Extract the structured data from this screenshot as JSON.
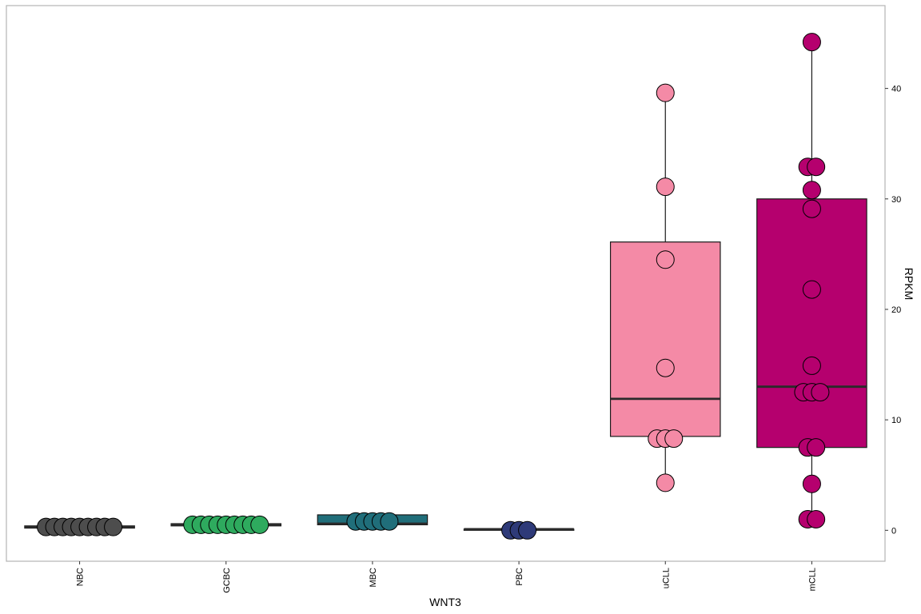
{
  "chart_data": {
    "type": "box",
    "xlabel": "WNT3",
    "ylabel": "RPKM",
    "ylim": [
      -2.8,
      47.5
    ],
    "yticks": [
      0,
      10,
      20,
      30,
      40
    ],
    "y_axis_position": "right",
    "grid": false,
    "legend": "none",
    "categories": [
      "NBC",
      "GCBC",
      "MBC",
      "PBC",
      "uCLL",
      "mCLL"
    ],
    "groups": [
      {
        "name": "NBC",
        "color": "#4d4d4d",
        "box": {
          "q1": 0.2,
          "median": 0.3,
          "q3": 0.4,
          "whisker_low": 0.2,
          "whisker_high": 0.4
        },
        "points": [
          0.3,
          0.3,
          0.3,
          0.3,
          0.3,
          0.3,
          0.3,
          0.3,
          0.3
        ]
      },
      {
        "name": "GCBC",
        "color": "#2eaa5e",
        "box": {
          "q1": 0.4,
          "median": 0.5,
          "q3": 0.6,
          "whisker_low": 0.4,
          "whisker_high": 0.6
        },
        "points": [
          0.5,
          0.5,
          0.5,
          0.5,
          0.5,
          0.5,
          0.5,
          0.5,
          0.5
        ]
      },
      {
        "name": "MBC",
        "color": "#206e7a",
        "box": {
          "q1": 0.5,
          "median": 0.6,
          "q3": 1.4,
          "whisker_low": 0.5,
          "whisker_high": 1.4
        },
        "points": [
          0.8,
          0.8,
          0.8,
          0.8,
          0.8
        ]
      },
      {
        "name": "PBC",
        "color": "#2e3a78",
        "box": {
          "q1": 0.0,
          "median": 0.1,
          "q3": 0.1,
          "whisker_low": 0.0,
          "whisker_high": 0.1
        },
        "points": [
          0.0,
          0.0,
          0.0
        ]
      },
      {
        "name": "uCLL",
        "color": "#f48aa6",
        "box": {
          "q1": 8.5,
          "median": 11.9,
          "q3": 26.1,
          "whisker_low": 4.3,
          "whisker_high": 39.6
        },
        "points": [
          39.6,
          31.1,
          24.5,
          14.7,
          8.3,
          8.3,
          8.3,
          4.3
        ]
      },
      {
        "name": "mCLL",
        "color": "#b5006e",
        "box": {
          "q1": 7.5,
          "median": 13.0,
          "q3": 30.0,
          "whisker_low": 1.0,
          "whisker_high": 44.2
        },
        "points": [
          44.2,
          32.9,
          32.9,
          30.8,
          29.1,
          21.8,
          14.9,
          12.5,
          12.5,
          12.5,
          7.5,
          7.5,
          4.2,
          1.0,
          1.0
        ]
      }
    ]
  }
}
